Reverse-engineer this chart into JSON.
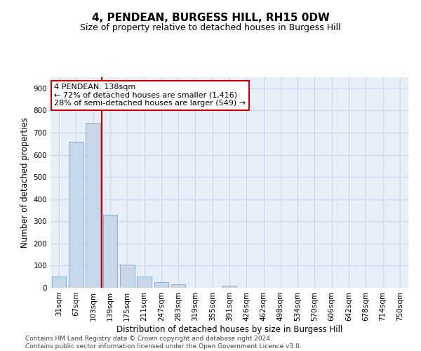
{
  "title": "4, PENDEAN, BURGESS HILL, RH15 0DW",
  "subtitle": "Size of property relative to detached houses in Burgess Hill",
  "xlabel": "Distribution of detached houses by size in Burgess Hill",
  "ylabel": "Number of detached properties",
  "categories": [
    "31sqm",
    "67sqm",
    "103sqm",
    "139sqm",
    "175sqm",
    "211sqm",
    "247sqm",
    "283sqm",
    "319sqm",
    "355sqm",
    "391sqm",
    "426sqm",
    "462sqm",
    "498sqm",
    "534sqm",
    "570sqm",
    "606sqm",
    "642sqm",
    "678sqm",
    "714sqm",
    "750sqm"
  ],
  "values": [
    50,
    660,
    745,
    330,
    105,
    50,
    25,
    17,
    0,
    0,
    10,
    0,
    0,
    0,
    0,
    0,
    0,
    0,
    0,
    0,
    0
  ],
  "bar_color": "#c8d8ea",
  "bar_edge_color": "#7aaac8",
  "grid_color": "#c8d4e8",
  "background_color": "#e8eef8",
  "vline_x_index": 2.5,
  "vline_color": "#bb0000",
  "annotation_text": "4 PENDEAN: 138sqm\n← 72% of detached houses are smaller (1,416)\n28% of semi-detached houses are larger (549) →",
  "annotation_box_facecolor": "#ffffff",
  "annotation_box_edgecolor": "#cc0000",
  "ylim": [
    0,
    950
  ],
  "yticks": [
    0,
    100,
    200,
    300,
    400,
    500,
    600,
    700,
    800,
    900
  ],
  "footer": "Contains HM Land Registry data © Crown copyright and database right 2024.\nContains public sector information licensed under the Open Government Licence v3.0.",
  "title_fontsize": 11,
  "subtitle_fontsize": 9,
  "label_fontsize": 8.5,
  "tick_fontsize": 7.5,
  "annotation_fontsize": 8,
  "footer_fontsize": 6.5
}
